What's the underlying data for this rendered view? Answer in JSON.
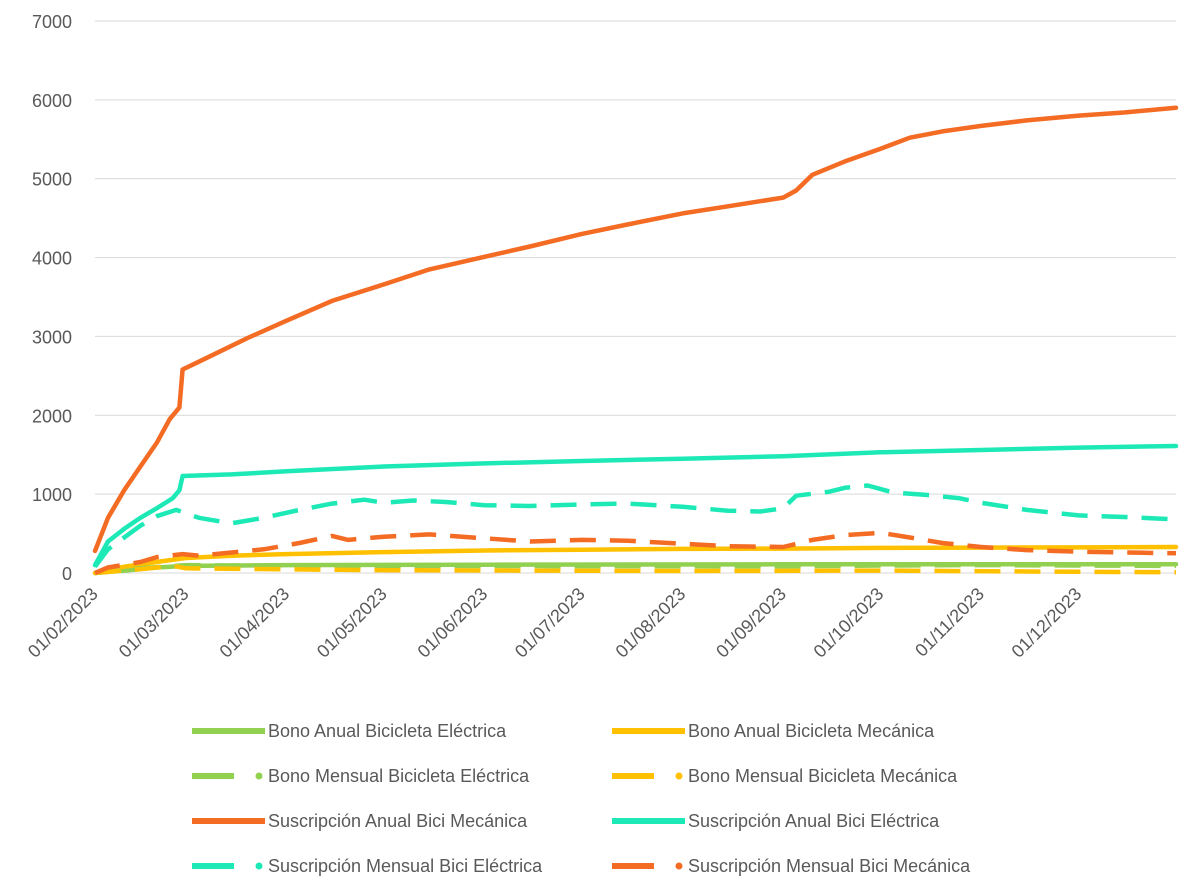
{
  "chart_data": {
    "type": "line",
    "title": "",
    "xlabel": "",
    "ylabel": "",
    "x_start": "01/02/2023",
    "x_end": "31/12/2023",
    "ylim": [
      0,
      7000
    ],
    "yticks": [
      0,
      1000,
      2000,
      3000,
      4000,
      5000,
      6000,
      7000
    ],
    "xticks": [
      "01/02/2023",
      "01/03/2023",
      "01/04/2023",
      "01/05/2023",
      "01/06/2023",
      "01/07/2023",
      "01/08/2023",
      "01/09/2023",
      "01/10/2023",
      "01/11/2023",
      "01/12/2023"
    ],
    "grid": "horizontal",
    "legend_position": "bottom",
    "series": [
      {
        "name": "Bono Anual Bicicleta Eléctrica",
        "color": "#92d050",
        "style": "solid",
        "points": [
          [
            "01/02/2023",
            0
          ],
          [
            "10/02/2023",
            30
          ],
          [
            "20/02/2023",
            70
          ],
          [
            "01/03/2023",
            90
          ],
          [
            "01/04/2023",
            100
          ],
          [
            "01/06/2023",
            105
          ],
          [
            "01/09/2023",
            110
          ],
          [
            "31/12/2023",
            112
          ]
        ]
      },
      {
        "name": "Bono Anual Bicicleta Mecánica",
        "color": "#ffc000",
        "style": "solid",
        "points": [
          [
            "01/02/2023",
            0
          ],
          [
            "10/02/2023",
            80
          ],
          [
            "20/02/2023",
            140
          ],
          [
            "01/03/2023",
            190
          ],
          [
            "15/03/2023",
            220
          ],
          [
            "01/04/2023",
            240
          ],
          [
            "01/05/2023",
            265
          ],
          [
            "01/06/2023",
            285
          ],
          [
            "01/07/2023",
            295
          ],
          [
            "01/08/2023",
            305
          ],
          [
            "01/09/2023",
            310
          ],
          [
            "01/10/2023",
            318
          ],
          [
            "01/11/2023",
            322
          ],
          [
            "01/12/2023",
            325
          ],
          [
            "31/12/2023",
            330
          ]
        ]
      },
      {
        "name": "Bono Mensual Bicicleta Eléctrica",
        "color": "#92d050",
        "style": "dashed",
        "points": [
          [
            "01/02/2023",
            0
          ],
          [
            "15/02/2023",
            60
          ],
          [
            "01/03/2023",
            100
          ],
          [
            "15/03/2023",
            95
          ],
          [
            "01/05/2023",
            90
          ],
          [
            "01/07/2023",
            88
          ],
          [
            "01/09/2023",
            85
          ],
          [
            "01/10/2023",
            95
          ],
          [
            "01/11/2023",
            100
          ],
          [
            "01/12/2023",
            95
          ],
          [
            "31/12/2023",
            90
          ]
        ]
      },
      {
        "name": "Bono Mensual Bicicleta Mecánica",
        "color": "#ffc000",
        "style": "dashed",
        "points": [
          [
            "01/02/2023",
            0
          ],
          [
            "15/02/2023",
            50
          ],
          [
            "25/02/2023",
            90
          ],
          [
            "01/03/2023",
            60
          ],
          [
            "01/05/2023",
            35
          ],
          [
            "01/08/2023",
            25
          ],
          [
            "01/10/2023",
            30
          ],
          [
            "01/12/2023",
            15
          ],
          [
            "31/12/2023",
            10
          ]
        ]
      },
      {
        "name": "Suscripción Anual  Bici Mecánica",
        "color": "#f46b24",
        "style": "solid",
        "points": [
          [
            "01/02/2023",
            280
          ],
          [
            "05/02/2023",
            700
          ],
          [
            "10/02/2023",
            1050
          ],
          [
            "15/02/2023",
            1350
          ],
          [
            "20/02/2023",
            1650
          ],
          [
            "24/02/2023",
            1950
          ],
          [
            "27/02/2023",
            2100
          ],
          [
            "28/02/2023",
            2580
          ],
          [
            "05/03/2023",
            2680
          ],
          [
            "10/03/2023",
            2780
          ],
          [
            "20/03/2023",
            2980
          ],
          [
            "01/04/2023",
            3200
          ],
          [
            "15/04/2023",
            3450
          ],
          [
            "01/05/2023",
            3660
          ],
          [
            "15/05/2023",
            3850
          ],
          [
            "01/06/2023",
            4010
          ],
          [
            "15/06/2023",
            4140
          ],
          [
            "01/07/2023",
            4300
          ],
          [
            "15/07/2023",
            4420
          ],
          [
            "01/08/2023",
            4560
          ],
          [
            "15/08/2023",
            4650
          ],
          [
            "01/09/2023",
            4760
          ],
          [
            "05/09/2023",
            4850
          ],
          [
            "10/09/2023",
            5050
          ],
          [
            "20/09/2023",
            5220
          ],
          [
            "01/10/2023",
            5380
          ],
          [
            "10/10/2023",
            5520
          ],
          [
            "20/10/2023",
            5600
          ],
          [
            "01/11/2023",
            5670
          ],
          [
            "15/11/2023",
            5740
          ],
          [
            "01/12/2023",
            5800
          ],
          [
            "15/12/2023",
            5840
          ],
          [
            "31/12/2023",
            5900
          ]
        ]
      },
      {
        "name": "Suscripción Anual Bici Eléctrica",
        "color": "#1de9b6",
        "style": "solid",
        "points": [
          [
            "01/02/2023",
            100
          ],
          [
            "05/02/2023",
            400
          ],
          [
            "10/02/2023",
            560
          ],
          [
            "15/02/2023",
            700
          ],
          [
            "20/02/2023",
            820
          ],
          [
            "25/02/2023",
            950
          ],
          [
            "27/02/2023",
            1050
          ],
          [
            "28/02/2023",
            1230
          ],
          [
            "15/03/2023",
            1250
          ],
          [
            "01/04/2023",
            1290
          ],
          [
            "01/05/2023",
            1350
          ],
          [
            "01/06/2023",
            1390
          ],
          [
            "01/07/2023",
            1420
          ],
          [
            "01/08/2023",
            1450
          ],
          [
            "01/09/2023",
            1480
          ],
          [
            "01/10/2023",
            1530
          ],
          [
            "01/11/2023",
            1560
          ],
          [
            "01/12/2023",
            1590
          ],
          [
            "31/12/2023",
            1610
          ]
        ]
      },
      {
        "name": "Suscripción Mensual Bici Eléctrica",
        "color": "#1de9b6",
        "style": "dashed",
        "points": [
          [
            "01/02/2023",
            80
          ],
          [
            "05/02/2023",
            300
          ],
          [
            "10/02/2023",
            450
          ],
          [
            "15/02/2023",
            600
          ],
          [
            "20/02/2023",
            720
          ],
          [
            "26/02/2023",
            800
          ],
          [
            "05/03/2023",
            700
          ],
          [
            "15/03/2023",
            630
          ],
          [
            "25/03/2023",
            700
          ],
          [
            "05/04/2023",
            800
          ],
          [
            "15/04/2023",
            880
          ],
          [
            "25/04/2023",
            930
          ],
          [
            "01/05/2023",
            890
          ],
          [
            "10/05/2023",
            920
          ],
          [
            "20/05/2023",
            900
          ],
          [
            "01/06/2023",
            860
          ],
          [
            "15/06/2023",
            850
          ],
          [
            "01/07/2023",
            870
          ],
          [
            "15/07/2023",
            880
          ],
          [
            "01/08/2023",
            840
          ],
          [
            "15/08/2023",
            790
          ],
          [
            "25/08/2023",
            780
          ],
          [
            "01/09/2023",
            820
          ],
          [
            "05/09/2023",
            980
          ],
          [
            "15/09/2023",
            1030
          ],
          [
            "20/09/2023",
            1080
          ],
          [
            "27/09/2023",
            1110
          ],
          [
            "05/10/2023",
            1020
          ],
          [
            "15/10/2023",
            990
          ],
          [
            "25/10/2023",
            950
          ],
          [
            "01/11/2023",
            890
          ],
          [
            "15/11/2023",
            800
          ],
          [
            "01/12/2023",
            730
          ],
          [
            "15/12/2023",
            710
          ],
          [
            "31/12/2023",
            680
          ]
        ]
      },
      {
        "name": "Suscripción Mensual Bici Mecánica",
        "color": "#f46b24",
        "style": "dashed",
        "points": [
          [
            "01/02/2023",
            0
          ],
          [
            "05/02/2023",
            70
          ],
          [
            "15/02/2023",
            140
          ],
          [
            "20/02/2023",
            200
          ],
          [
            "28/02/2023",
            240
          ],
          [
            "05/03/2023",
            220
          ],
          [
            "15/03/2023",
            260
          ],
          [
            "25/03/2023",
            300
          ],
          [
            "05/04/2023",
            380
          ],
          [
            "15/04/2023",
            470
          ],
          [
            "20/04/2023",
            420
          ],
          [
            "01/05/2023",
            460
          ],
          [
            "15/05/2023",
            490
          ],
          [
            "01/06/2023",
            440
          ],
          [
            "15/06/2023",
            400
          ],
          [
            "01/07/2023",
            420
          ],
          [
            "15/07/2023",
            410
          ],
          [
            "01/08/2023",
            370
          ],
          [
            "15/08/2023",
            340
          ],
          [
            "01/09/2023",
            330
          ],
          [
            "10/09/2023",
            420
          ],
          [
            "20/09/2023",
            480
          ],
          [
            "01/10/2023",
            510
          ],
          [
            "10/10/2023",
            450
          ],
          [
            "20/10/2023",
            380
          ],
          [
            "01/11/2023",
            330
          ],
          [
            "15/11/2023",
            290
          ],
          [
            "01/12/2023",
            270
          ],
          [
            "15/12/2023",
            260
          ],
          [
            "31/12/2023",
            250
          ]
        ]
      }
    ]
  }
}
